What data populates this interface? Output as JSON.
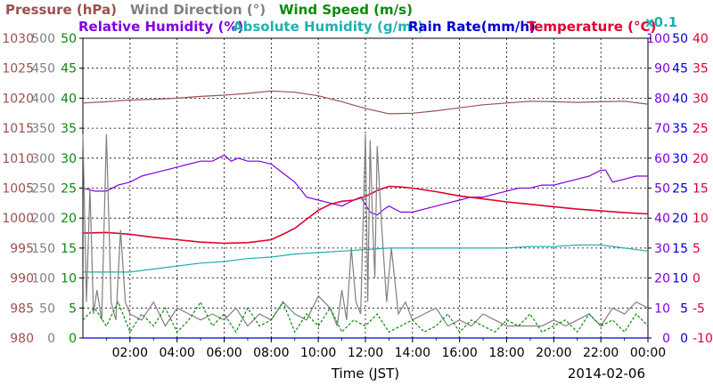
{
  "chart_data": {
    "type": "line",
    "date": "2014-02-06",
    "xlabel": "Time (JST)",
    "x_tick_labels": [
      "02:00",
      "04:00",
      "06:00",
      "08:00",
      "10:00",
      "12:00",
      "14:00",
      "16:00",
      "18:00",
      "20:00",
      "22:00",
      "00:00"
    ],
    "x_ticks_hours": [
      2,
      4,
      6,
      8,
      10,
      12,
      14,
      16,
      18,
      20,
      22,
      24
    ],
    "xlim_hours": [
      0,
      24
    ],
    "grid": true,
    "legend_row1": [
      {
        "label": "Pressure (hPa)",
        "color": "#9b5050"
      },
      {
        "label": "Wind Direction (°)",
        "color": "#808080"
      },
      {
        "label": "Wind Speed (m/s)",
        "color": "#0a8a0a"
      }
    ],
    "legend_row2": [
      {
        "label": "Relative Humidity (%)",
        "color": "#8000e0"
      },
      {
        "label": "Absolute Humidity (g/m³)",
        "color": "#20b0b0"
      },
      {
        "label": "Rain Rate(mm/h)",
        "color": "#0000d0"
      },
      {
        "label": "Temperature (°C)",
        "color": "#e00030"
      }
    ],
    "abs_humidity_scale_note": "x0.1",
    "axes": {
      "pressure": {
        "color": "#9b5050",
        "ticks": [
          "980",
          "985",
          "990",
          "995",
          "1000",
          "1005",
          "1010",
          "1015",
          "1020",
          "1025",
          "1030"
        ],
        "ylim": [
          980,
          1030
        ]
      },
      "wind_direction": {
        "color": "#808080",
        "ticks": [
          "0",
          "50",
          "100",
          "150",
          "200",
          "250",
          "300",
          "350",
          "400",
          "450",
          "500"
        ],
        "ylim": [
          0,
          500
        ]
      },
      "wind_speed": {
        "color": "#0a8a0a",
        "ticks": [
          "0",
          "5",
          "10",
          "15",
          "20",
          "25",
          "30",
          "35",
          "40",
          "45",
          "50"
        ],
        "ylim": [
          0,
          50
        ]
      },
      "relative_humidity": {
        "color": "#8000e0",
        "ticks": [
          "0",
          "10",
          "20",
          "30",
          "40",
          "50",
          "60",
          "70",
          "80",
          "90",
          "100"
        ],
        "ylim": [
          0,
          100
        ]
      },
      "rain_rate": {
        "color": "#0000d0",
        "ticks": [
          "0",
          "5",
          "10",
          "15",
          "20",
          "25",
          "30",
          "35",
          "40",
          "45",
          "50"
        ],
        "ylim": [
          0,
          50
        ]
      },
      "temperature": {
        "color": "#e00030",
        "ticks": [
          "-10",
          "-5",
          "0",
          "5",
          "10",
          "15",
          "20",
          "25",
          "30",
          "35",
          "40"
        ],
        "ylim": [
          -10,
          40
        ]
      }
    },
    "series": [
      {
        "name": "Pressure",
        "axis": "pressure",
        "color": "#9b5050",
        "x": [
          0,
          1,
          2,
          3,
          4,
          5,
          6,
          7,
          8,
          9,
          10,
          11,
          12,
          13,
          14,
          15,
          16,
          17,
          18,
          19,
          20,
          21,
          22,
          23,
          24
        ],
        "y": [
          1019.2,
          1019.4,
          1019.7,
          1019.8,
          1020.0,
          1020.3,
          1020.5,
          1020.8,
          1021.2,
          1021.0,
          1020.4,
          1019.4,
          1018.3,
          1017.4,
          1017.5,
          1017.9,
          1018.4,
          1018.9,
          1019.2,
          1019.5,
          1019.4,
          1019.3,
          1019.4,
          1019.5,
          1019.0
        ]
      },
      {
        "name": "Relative Humidity",
        "axis": "relative_humidity",
        "color": "#8000e0",
        "x": [
          0,
          0.5,
          1,
          1.5,
          2,
          2.5,
          3,
          3.5,
          4,
          4.5,
          5,
          5.5,
          6,
          6.3,
          6.6,
          7,
          7.5,
          8,
          8.5,
          9,
          9.5,
          10,
          10.5,
          11,
          11.5,
          11.8,
          12.2,
          12.5,
          12.8,
          13,
          13.5,
          14,
          14.5,
          15,
          15.5,
          16,
          16.5,
          17,
          17.5,
          18,
          18.5,
          19,
          19.5,
          20,
          20.5,
          21,
          21.5,
          22,
          22.2,
          22.5,
          23,
          23.5,
          24
        ],
        "y": [
          50,
          49,
          49,
          51,
          52,
          54,
          55,
          56,
          57,
          58,
          59,
          59,
          61,
          59,
          60,
          59,
          59,
          58,
          55,
          52,
          47,
          46,
          45,
          44,
          46,
          47,
          42,
          41,
          43,
          44,
          42,
          42,
          43,
          44,
          45,
          46,
          47,
          47,
          48,
          49,
          50,
          50,
          51,
          51,
          52,
          53,
          54,
          56,
          56,
          52,
          53,
          54,
          54
        ]
      },
      {
        "name": "Absolute Humidity (x0.1)",
        "axis": "relative_humidity",
        "color": "#20b0b0",
        "x": [
          0,
          1,
          2,
          3,
          4,
          5,
          6,
          7,
          8,
          9,
          10,
          11,
          12,
          13,
          14,
          15,
          16,
          17,
          18,
          19,
          20,
          21,
          22,
          23,
          24
        ],
        "y": [
          22,
          22,
          22,
          23,
          24,
          25,
          25.5,
          26.5,
          27,
          28,
          28.5,
          29,
          29.5,
          30,
          30,
          30,
          30,
          30,
          30,
          30.5,
          30.5,
          31,
          31,
          30,
          29
        ]
      },
      {
        "name": "Temperature",
        "axis": "temperature",
        "color": "#e00030",
        "x": [
          0,
          1,
          2,
          3,
          4,
          5,
          6,
          7,
          8,
          8.5,
          9,
          9.5,
          10,
          10.5,
          11,
          11.5,
          12,
          12.5,
          13,
          13.5,
          14,
          15,
          16,
          17,
          18,
          19,
          20,
          21,
          22,
          23,
          24
        ],
        "y": [
          7.5,
          7.6,
          7.3,
          6.8,
          6.4,
          6.0,
          5.8,
          5.9,
          6.4,
          7.3,
          8.3,
          9.8,
          11.3,
          12.3,
          12.8,
          13.0,
          13.6,
          14.6,
          15.3,
          15.2,
          15.0,
          14.4,
          13.7,
          13.2,
          12.7,
          12.3,
          11.9,
          11.5,
          11.2,
          10.9,
          10.7
        ]
      },
      {
        "name": "Wind Direction",
        "axis": "wind_direction",
        "color": "#808080",
        "x": [
          0,
          0.15,
          0.3,
          0.45,
          0.6,
          0.8,
          1.0,
          1.2,
          1.4,
          1.6,
          1.8,
          2,
          2.5,
          3,
          3.5,
          4,
          4.5,
          5,
          5.5,
          6,
          6.5,
          7,
          7.5,
          8,
          8.5,
          9,
          9.5,
          10,
          10.5,
          10.8,
          11,
          11.2,
          11.4,
          11.6,
          11.8,
          12,
          12.1,
          12.2,
          12.3,
          12.4,
          12.5,
          12.7,
          12.9,
          13.1,
          13.4,
          13.7,
          14,
          14.5,
          15,
          15.5,
          16,
          16.5,
          17,
          17.5,
          18,
          18.5,
          19,
          19.5,
          20,
          20.5,
          21,
          21.5,
          22,
          22.5,
          23,
          23.5,
          24
        ],
        "y": [
          340,
          60,
          250,
          40,
          80,
          30,
          340,
          60,
          30,
          180,
          60,
          40,
          30,
          60,
          20,
          50,
          40,
          30,
          40,
          30,
          50,
          20,
          40,
          30,
          60,
          40,
          30,
          70,
          50,
          20,
          80,
          30,
          150,
          60,
          40,
          340,
          60,
          330,
          200,
          100,
          320,
          180,
          60,
          150,
          40,
          60,
          30,
          40,
          50,
          20,
          30,
          20,
          40,
          30,
          20,
          20,
          20,
          20,
          30,
          20,
          30,
          40,
          20,
          50,
          40,
          60,
          50
        ]
      },
      {
        "name": "Wind Speed",
        "axis": "wind_speed",
        "color": "#0a8a0a",
        "x": [
          0,
          0.5,
          1,
          1.5,
          2,
          2.5,
          3,
          3.5,
          4,
          4.5,
          5,
          5.5,
          6,
          6.5,
          7,
          7.5,
          8,
          8.5,
          9,
          9.5,
          10,
          10.5,
          11,
          11.5,
          12,
          12.5,
          13,
          13.5,
          14,
          14.5,
          15,
          15.5,
          16,
          16.5,
          17,
          17.5,
          18,
          18.5,
          19,
          19.5,
          20,
          20.5,
          21,
          21.5,
          22,
          22.5,
          23,
          23.5,
          24
        ],
        "y": [
          3,
          5,
          2,
          6,
          1,
          4,
          2,
          5,
          1,
          3,
          6,
          2,
          4,
          1,
          5,
          2,
          3,
          6,
          1,
          4,
          2,
          5,
          1,
          3,
          2,
          4,
          1,
          2,
          3,
          1,
          2,
          4,
          1,
          3,
          2,
          1,
          3,
          2,
          4,
          1,
          2,
          3,
          1,
          4,
          2,
          3,
          1,
          4,
          2
        ]
      },
      {
        "name": "Rain Rate",
        "axis": "rain_rate",
        "color": "#0000d0",
        "x": [
          0,
          24
        ],
        "y": [
          0,
          0
        ]
      }
    ]
  }
}
